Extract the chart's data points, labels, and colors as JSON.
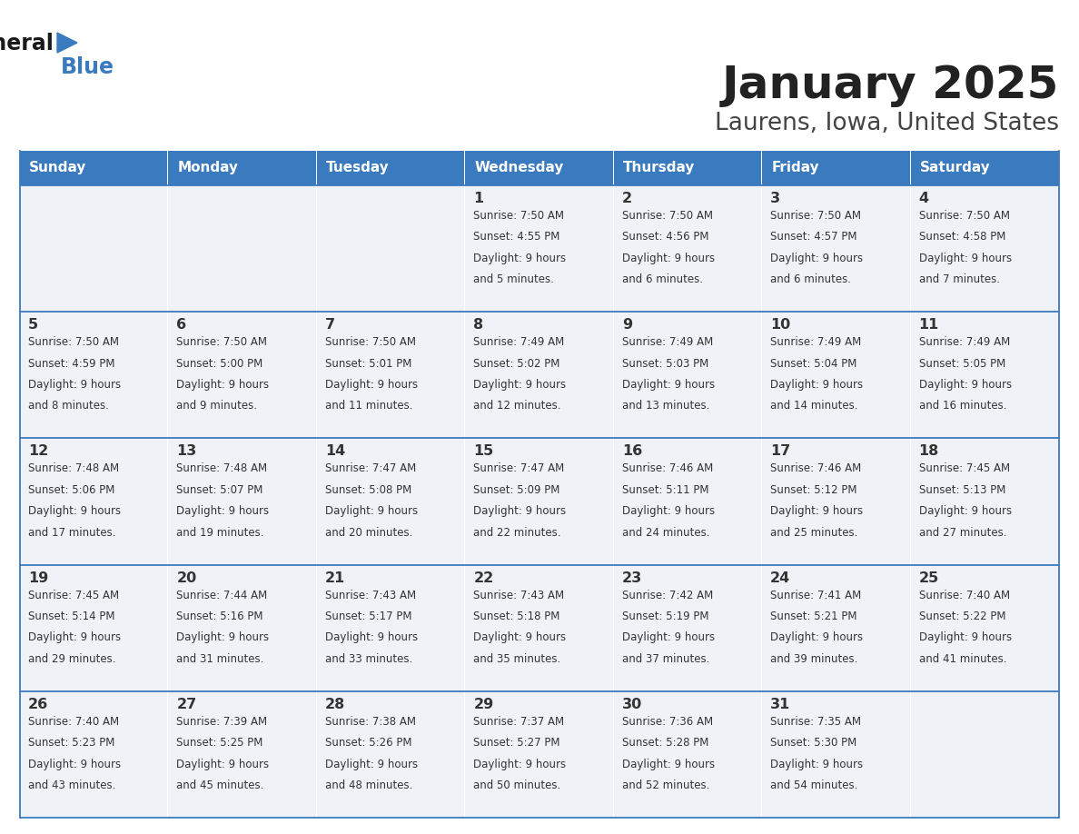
{
  "title": "January 2025",
  "subtitle": "Laurens, Iowa, United States",
  "header_color": "#3a7abf",
  "header_text_color": "#ffffff",
  "cell_bg_color": "#eff3f8",
  "border_color": "#3a7abf",
  "text_color": "#333333",
  "day_names": [
    "Sunday",
    "Monday",
    "Tuesday",
    "Wednesday",
    "Thursday",
    "Friday",
    "Saturday"
  ],
  "days": [
    {
      "day": 1,
      "col": 3,
      "row": 0,
      "sunrise": "7:50 AM",
      "sunset": "4:55 PM",
      "daylight": "9 hours and 5 minutes"
    },
    {
      "day": 2,
      "col": 4,
      "row": 0,
      "sunrise": "7:50 AM",
      "sunset": "4:56 PM",
      "daylight": "9 hours and 6 minutes"
    },
    {
      "day": 3,
      "col": 5,
      "row": 0,
      "sunrise": "7:50 AM",
      "sunset": "4:57 PM",
      "daylight": "9 hours and 6 minutes"
    },
    {
      "day": 4,
      "col": 6,
      "row": 0,
      "sunrise": "7:50 AM",
      "sunset": "4:58 PM",
      "daylight": "9 hours and 7 minutes"
    },
    {
      "day": 5,
      "col": 0,
      "row": 1,
      "sunrise": "7:50 AM",
      "sunset": "4:59 PM",
      "daylight": "9 hours and 8 minutes"
    },
    {
      "day": 6,
      "col": 1,
      "row": 1,
      "sunrise": "7:50 AM",
      "sunset": "5:00 PM",
      "daylight": "9 hours and 9 minutes"
    },
    {
      "day": 7,
      "col": 2,
      "row": 1,
      "sunrise": "7:50 AM",
      "sunset": "5:01 PM",
      "daylight": "9 hours and 11 minutes"
    },
    {
      "day": 8,
      "col": 3,
      "row": 1,
      "sunrise": "7:49 AM",
      "sunset": "5:02 PM",
      "daylight": "9 hours and 12 minutes"
    },
    {
      "day": 9,
      "col": 4,
      "row": 1,
      "sunrise": "7:49 AM",
      "sunset": "5:03 PM",
      "daylight": "9 hours and 13 minutes"
    },
    {
      "day": 10,
      "col": 5,
      "row": 1,
      "sunrise": "7:49 AM",
      "sunset": "5:04 PM",
      "daylight": "9 hours and 14 minutes"
    },
    {
      "day": 11,
      "col": 6,
      "row": 1,
      "sunrise": "7:49 AM",
      "sunset": "5:05 PM",
      "daylight": "9 hours and 16 minutes"
    },
    {
      "day": 12,
      "col": 0,
      "row": 2,
      "sunrise": "7:48 AM",
      "sunset": "5:06 PM",
      "daylight": "9 hours and 17 minutes"
    },
    {
      "day": 13,
      "col": 1,
      "row": 2,
      "sunrise": "7:48 AM",
      "sunset": "5:07 PM",
      "daylight": "9 hours and 19 minutes"
    },
    {
      "day": 14,
      "col": 2,
      "row": 2,
      "sunrise": "7:47 AM",
      "sunset": "5:08 PM",
      "daylight": "9 hours and 20 minutes"
    },
    {
      "day": 15,
      "col": 3,
      "row": 2,
      "sunrise": "7:47 AM",
      "sunset": "5:09 PM",
      "daylight": "9 hours and 22 minutes"
    },
    {
      "day": 16,
      "col": 4,
      "row": 2,
      "sunrise": "7:46 AM",
      "sunset": "5:11 PM",
      "daylight": "9 hours and 24 minutes"
    },
    {
      "day": 17,
      "col": 5,
      "row": 2,
      "sunrise": "7:46 AM",
      "sunset": "5:12 PM",
      "daylight": "9 hours and 25 minutes"
    },
    {
      "day": 18,
      "col": 6,
      "row": 2,
      "sunrise": "7:45 AM",
      "sunset": "5:13 PM",
      "daylight": "9 hours and 27 minutes"
    },
    {
      "day": 19,
      "col": 0,
      "row": 3,
      "sunrise": "7:45 AM",
      "sunset": "5:14 PM",
      "daylight": "9 hours and 29 minutes"
    },
    {
      "day": 20,
      "col": 1,
      "row": 3,
      "sunrise": "7:44 AM",
      "sunset": "5:16 PM",
      "daylight": "9 hours and 31 minutes"
    },
    {
      "day": 21,
      "col": 2,
      "row": 3,
      "sunrise": "7:43 AM",
      "sunset": "5:17 PM",
      "daylight": "9 hours and 33 minutes"
    },
    {
      "day": 22,
      "col": 3,
      "row": 3,
      "sunrise": "7:43 AM",
      "sunset": "5:18 PM",
      "daylight": "9 hours and 35 minutes"
    },
    {
      "day": 23,
      "col": 4,
      "row": 3,
      "sunrise": "7:42 AM",
      "sunset": "5:19 PM",
      "daylight": "9 hours and 37 minutes"
    },
    {
      "day": 24,
      "col": 5,
      "row": 3,
      "sunrise": "7:41 AM",
      "sunset": "5:21 PM",
      "daylight": "9 hours and 39 minutes"
    },
    {
      "day": 25,
      "col": 6,
      "row": 3,
      "sunrise": "7:40 AM",
      "sunset": "5:22 PM",
      "daylight": "9 hours and 41 minutes"
    },
    {
      "day": 26,
      "col": 0,
      "row": 4,
      "sunrise": "7:40 AM",
      "sunset": "5:23 PM",
      "daylight": "9 hours and 43 minutes"
    },
    {
      "day": 27,
      "col": 1,
      "row": 4,
      "sunrise": "7:39 AM",
      "sunset": "5:25 PM",
      "daylight": "9 hours and 45 minutes"
    },
    {
      "day": 28,
      "col": 2,
      "row": 4,
      "sunrise": "7:38 AM",
      "sunset": "5:26 PM",
      "daylight": "9 hours and 48 minutes"
    },
    {
      "day": 29,
      "col": 3,
      "row": 4,
      "sunrise": "7:37 AM",
      "sunset": "5:27 PM",
      "daylight": "9 hours and 50 minutes"
    },
    {
      "day": 30,
      "col": 4,
      "row": 4,
      "sunrise": "7:36 AM",
      "sunset": "5:28 PM",
      "daylight": "9 hours and 52 minutes"
    },
    {
      "day": 31,
      "col": 5,
      "row": 4,
      "sunrise": "7:35 AM",
      "sunset": "5:30 PM",
      "daylight": "9 hours and 54 minutes"
    }
  ],
  "num_rows": 5,
  "num_cols": 7,
  "figwidth": 11.88,
  "figheight": 9.18,
  "dpi": 100
}
